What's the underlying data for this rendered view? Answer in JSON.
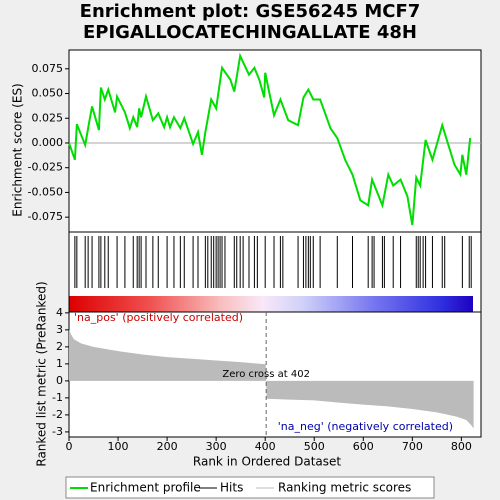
{
  "chart_data": {
    "type": "gsea",
    "title": [
      "Enrichment plot: GSE56245 MCF7",
      "EPIGALLOCATECHINGALLATE 48H"
    ],
    "xlabel": "Rank in Ordered Dataset",
    "xlim": [
      0,
      840
    ],
    "xticks": [
      0,
      100,
      200,
      300,
      400,
      500,
      600,
      700,
      800
    ],
    "es": {
      "name": "Enrichment profile",
      "color": "#00dd00",
      "ylabel": "Enrichment score (ES)",
      "ylim": [
        -0.09,
        0.094
      ],
      "yticks": [
        {
          "value": 0.075,
          "label": "0.075"
        },
        {
          "value": 0.05,
          "label": "0.050"
        },
        {
          "value": 0.025,
          "label": "0.025"
        },
        {
          "value": 0,
          "label": "0.000"
        },
        {
          "value": -0.025,
          "label": "-0.025"
        },
        {
          "value": -0.05,
          "label": "-0.050"
        },
        {
          "value": -0.075,
          "label": "-0.075"
        }
      ],
      "x": [
        0,
        12,
        16,
        33,
        39,
        47,
        61,
        65,
        73,
        80,
        94,
        98,
        114,
        124,
        131,
        139,
        143,
        147,
        157,
        171,
        182,
        194,
        200,
        206,
        214,
        227,
        235,
        253,
        263,
        271,
        278,
        290,
        300,
        312,
        329,
        337,
        349,
        367,
        378,
        388,
        398,
        400,
        418,
        431,
        447,
        467,
        478,
        488,
        498,
        512,
        533,
        547,
        563,
        578,
        594,
        610,
        618,
        639,
        651,
        661,
        676,
        690,
        700,
        708,
        716,
        727,
        741,
        761,
        786,
        798,
        802,
        810,
        818
      ],
      "values": [
        0,
        -0.017,
        0.019,
        -0.002,
        0.015,
        0.037,
        0.013,
        0.056,
        0.044,
        0.054,
        0.031,
        0.047,
        0.031,
        0.015,
        0.026,
        0.016,
        0.035,
        0.026,
        0.047,
        0.023,
        0.03,
        0.016,
        0.026,
        0.016,
        0.026,
        0.015,
        0.025,
        -0.001,
        0.011,
        -0.012,
        0.011,
        0.044,
        0.035,
        0.076,
        0.064,
        0.052,
        0.088,
        0.069,
        0.076,
        0.064,
        0.046,
        0.071,
        0.028,
        0.044,
        0.023,
        0.018,
        0.046,
        0.054,
        0.044,
        0.044,
        0.015,
        0.005,
        -0.017,
        -0.032,
        -0.058,
        -0.063,
        -0.037,
        -0.063,
        -0.032,
        -0.043,
        -0.037,
        -0.054,
        -0.083,
        -0.035,
        -0.043,
        0.003,
        -0.017,
        0.018,
        -0.022,
        -0.032,
        -0.012,
        -0.032,
        0.005
      ]
    },
    "hits": {
      "name": "Hits",
      "color": "#000000",
      "x": [
        12,
        16,
        33,
        39,
        47,
        61,
        65,
        73,
        80,
        98,
        114,
        131,
        139,
        143,
        147,
        157,
        171,
        182,
        200,
        214,
        227,
        235,
        253,
        263,
        278,
        283,
        290,
        295,
        300,
        304,
        308,
        312,
        318,
        337,
        342,
        349,
        355,
        367,
        378,
        384,
        400,
        418,
        431,
        436,
        467,
        478,
        483,
        488,
        492,
        498,
        512,
        547,
        578,
        610,
        618,
        622,
        639,
        643,
        661,
        676,
        708,
        712,
        716,
        722,
        727,
        741,
        761,
        766,
        802,
        816,
        820
      ]
    },
    "metric": {
      "name": "Ranking metric scores",
      "color": "#bbbbbb",
      "ylabel": "Ranked list metric (PreRanked)",
      "ylim": [
        -3.3,
        4.05
      ],
      "yticks": [
        4,
        3,
        2,
        1,
        0,
        -1,
        -2,
        -3
      ],
      "x": [
        0,
        5,
        10,
        25,
        50,
        100,
        150,
        200,
        250,
        300,
        350,
        401,
        403,
        450,
        500,
        550,
        600,
        650,
        700,
        750,
        790,
        810,
        820,
        825
      ],
      "values": [
        3.0,
        2.7,
        2.45,
        2.2,
        2.0,
        1.75,
        1.55,
        1.4,
        1.3,
        1.2,
        1.1,
        0.98,
        -1.05,
        -1.1,
        -1.15,
        -1.28,
        -1.4,
        -1.5,
        -1.65,
        -1.85,
        -2.1,
        -2.3,
        -2.6,
        -2.8
      ]
    },
    "zero_cross": 402,
    "zero_cross_label": "Zero cross at 402",
    "pos_label": "'na_pos' (positively correlated)",
    "neg_label": "'na_neg' (negatively correlated)"
  }
}
